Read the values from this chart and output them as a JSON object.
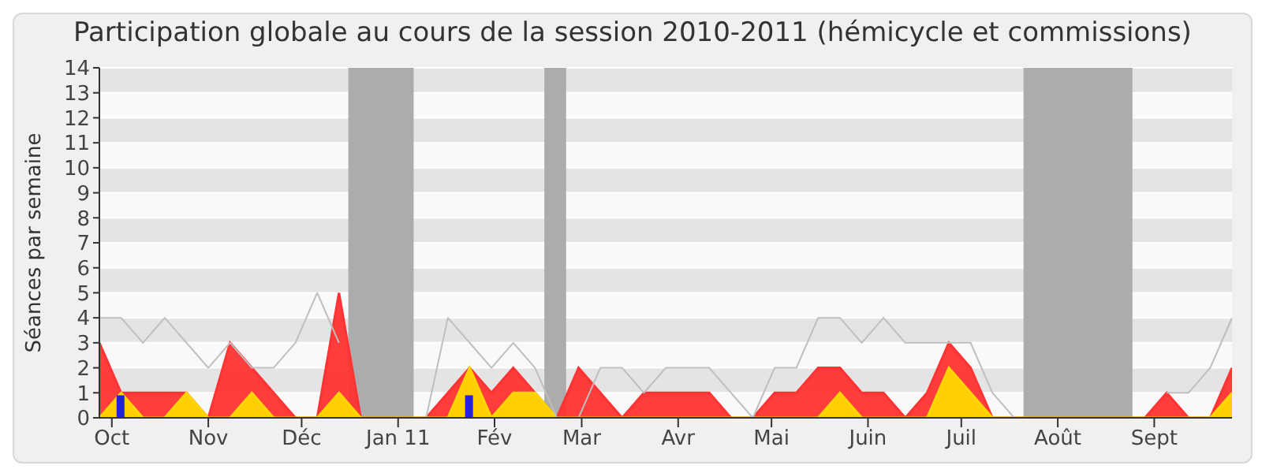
{
  "chart_data": {
    "type": "area",
    "title": "Participation globale au cours de la session 2010-2011 (hémicycle et commissions)",
    "ylabel": "Séances par semaine",
    "x": [
      "2010-09-27",
      "2010-10-04",
      "2010-10-11",
      "2010-10-18",
      "2010-10-25",
      "2010-11-01",
      "2010-11-08",
      "2010-11-15",
      "2010-11-22",
      "2010-11-29",
      "2010-12-06",
      "2010-12-13",
      "2010-12-20",
      "2010-12-27",
      "2011-01-03",
      "2011-01-10",
      "2011-01-17",
      "2011-01-24",
      "2011-01-31",
      "2011-02-07",
      "2011-02-14",
      "2011-02-21",
      "2011-02-28",
      "2011-03-07",
      "2011-03-14",
      "2011-03-21",
      "2011-03-28",
      "2011-04-04",
      "2011-04-11",
      "2011-04-18",
      "2011-04-25",
      "2011-05-02",
      "2011-05-09",
      "2011-05-16",
      "2011-05-23",
      "2011-05-30",
      "2011-06-06",
      "2011-06-13",
      "2011-06-20",
      "2011-06-27",
      "2011-07-04",
      "2011-07-11",
      "2011-07-18",
      "2011-07-25",
      "2011-08-01",
      "2011-08-08",
      "2011-08-15",
      "2011-08-22",
      "2011-08-29",
      "2011-09-05",
      "2011-09-12",
      "2011-09-19",
      "2011-09-26"
    ],
    "xlim": [
      "2010-09-27",
      "2011-09-26"
    ],
    "xticks": [
      {
        "value": "2010-10",
        "label": "Oct"
      },
      {
        "value": "2010-11",
        "label": "Nov"
      },
      {
        "value": "2010-12",
        "label": "Déc"
      },
      {
        "value": "2011-01",
        "label": "Jan 11"
      },
      {
        "value": "2011-02",
        "label": "Fév"
      },
      {
        "value": "2011-03",
        "label": "Mar"
      },
      {
        "value": "2011-04",
        "label": "Avr"
      },
      {
        "value": "2011-05",
        "label": "Mai"
      },
      {
        "value": "2011-06",
        "label": "Juin"
      },
      {
        "value": "2011-07",
        "label": "Juil"
      },
      {
        "value": "2011-08",
        "label": "Août"
      },
      {
        "value": "2011-09",
        "label": "Sept"
      }
    ],
    "ylim": [
      0,
      14
    ],
    "yticks": [
      0,
      1,
      2,
      3,
      4,
      5,
      6,
      7,
      8,
      9,
      10,
      11,
      12,
      13,
      14
    ],
    "grid": "y",
    "legend": false,
    "bands": [
      {
        "axis": "x",
        "from": "2010-12-16",
        "to": "2011-01-06",
        "color": "#acacac"
      },
      {
        "axis": "x",
        "from": "2011-02-17",
        "to": "2011-02-24",
        "color": "#acacac"
      },
      {
        "axis": "x",
        "from": "2011-07-21",
        "to": "2011-08-25",
        "color": "#acacac"
      }
    ],
    "series": [
      {
        "type": "line",
        "color": "#bebebe",
        "values": [
          4,
          4,
          3,
          4,
          3,
          2,
          3,
          2,
          2,
          3,
          5,
          3,
          null,
          null,
          null,
          0,
          4,
          3,
          2,
          3,
          2,
          0,
          0,
          2,
          2,
          1,
          2,
          2,
          2,
          1,
          0,
          2,
          2,
          4,
          4,
          3,
          4,
          3,
          3,
          3,
          3,
          1,
          0,
          null,
          null,
          null,
          null,
          null,
          null,
          1,
          1,
          2,
          4
        ]
      },
      {
        "color": "#ff3333",
        "values": [
          3,
          1,
          1,
          1,
          1,
          0,
          3,
          2,
          1,
          0,
          0,
          5,
          0,
          0,
          0,
          0,
          1,
          2,
          1,
          2,
          1,
          0,
          2,
          1,
          0,
          1,
          1,
          1,
          1,
          0,
          0,
          1,
          1,
          2,
          2,
          1,
          1,
          0,
          1,
          3,
          2,
          0,
          0,
          0,
          0,
          0,
          0,
          0,
          0,
          1,
          0,
          0,
          2
        ]
      },
      {
        "color": "#ffd700",
        "values": [
          0,
          1,
          0,
          0,
          1,
          0,
          0,
          1,
          0,
          0,
          0,
          1,
          0,
          0,
          0,
          0,
          0,
          2,
          0,
          1,
          1,
          0,
          0,
          0,
          0,
          0,
          0,
          0,
          0,
          0,
          0,
          0,
          0,
          0,
          1,
          0,
          0,
          0,
          0,
          2,
          1,
          0,
          0,
          0,
          0,
          0,
          0,
          0,
          0,
          0,
          0,
          0,
          1
        ]
      },
      {
        "type": "bar",
        "color": "#2222dd",
        "values": [
          0,
          0.9,
          0,
          0,
          0,
          0,
          0,
          0,
          0,
          0,
          0,
          0,
          0,
          0,
          0,
          0,
          0,
          0.9,
          0,
          0,
          0,
          0,
          0,
          0,
          0,
          0,
          0,
          0,
          0,
          0,
          0,
          0,
          0,
          0,
          0,
          0,
          0,
          0,
          0,
          0,
          0,
          0,
          0,
          0,
          0,
          0,
          0,
          0,
          0,
          0,
          0,
          0,
          0
        ]
      }
    ]
  }
}
